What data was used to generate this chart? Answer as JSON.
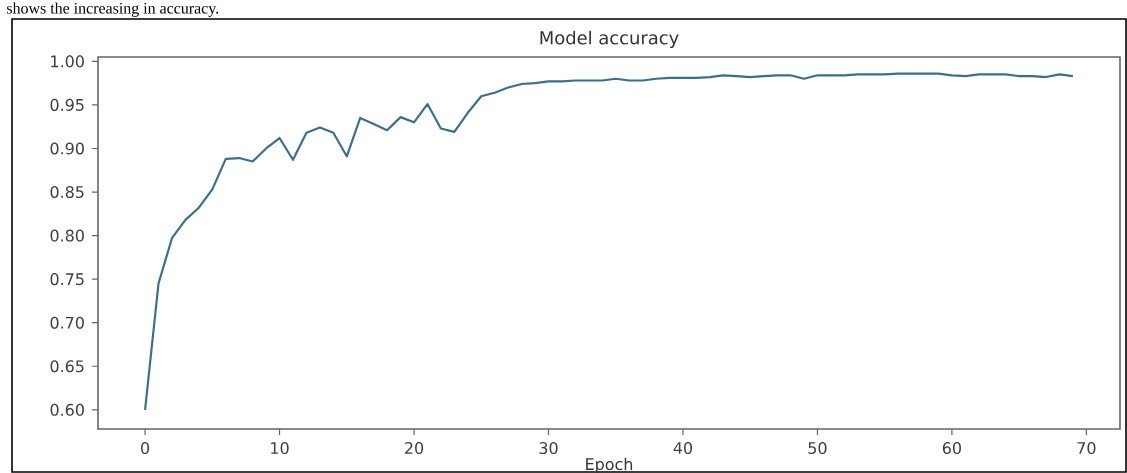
{
  "chart_data": {
    "type": "line",
    "title": "Model accuracy",
    "xlabel": "Epoch",
    "annotations": [
      "shows the increasing in accuracy."
    ],
    "x": [
      0,
      1,
      2,
      3,
      4,
      5,
      6,
      7,
      8,
      9,
      10,
      11,
      12,
      13,
      14,
      15,
      16,
      17,
      18,
      19,
      20,
      21,
      22,
      23,
      24,
      25,
      26,
      27,
      28,
      29,
      30,
      31,
      32,
      33,
      34,
      35,
      36,
      37,
      38,
      39,
      40,
      41,
      42,
      43,
      44,
      45,
      46,
      47,
      48,
      49,
      50,
      51,
      52,
      53,
      54,
      55,
      56,
      57,
      58,
      59,
      60,
      61,
      62,
      63,
      64,
      65,
      66,
      67,
      68,
      69
    ],
    "values": [
      0.6,
      0.745,
      0.797,
      0.818,
      0.832,
      0.853,
      0.888,
      0.889,
      0.885,
      0.9,
      0.912,
      0.887,
      0.918,
      0.924,
      0.918,
      0.891,
      0.935,
      0.928,
      0.921,
      0.936,
      0.93,
      0.951,
      0.923,
      0.919,
      0.941,
      0.96,
      0.964,
      0.97,
      0.974,
      0.975,
      0.977,
      0.977,
      0.978,
      0.978,
      0.978,
      0.98,
      0.978,
      0.978,
      0.98,
      0.981,
      0.981,
      0.981,
      0.982,
      0.984,
      0.983,
      0.982,
      0.983,
      0.984,
      0.984,
      0.98,
      0.984,
      0.984,
      0.984,
      0.985,
      0.985,
      0.985,
      0.986,
      0.986,
      0.986,
      0.986,
      0.984,
      0.983,
      0.985,
      0.985,
      0.985,
      0.983,
      0.983,
      0.982,
      0.985,
      0.983
    ],
    "color": "#3b6e8f",
    "xlim": [
      -3.5,
      72.5
    ],
    "ylim": [
      0.578,
      1.005
    ],
    "xticks": [
      0,
      10,
      20,
      30,
      40,
      50,
      60,
      70
    ],
    "yticks": [
      {
        "value": 0.6,
        "label": "0.60"
      },
      {
        "value": 0.65,
        "label": "0.65"
      },
      {
        "value": 0.7,
        "label": "0.70"
      },
      {
        "value": 0.75,
        "label": "0.75"
      },
      {
        "value": 0.8,
        "label": "0.80"
      },
      {
        "value": 0.85,
        "label": "0.85"
      },
      {
        "value": 0.9,
        "label": "0.90"
      },
      {
        "value": 0.95,
        "label": "0.95"
      },
      {
        "value": 1.0,
        "label": "1.00"
      }
    ]
  }
}
